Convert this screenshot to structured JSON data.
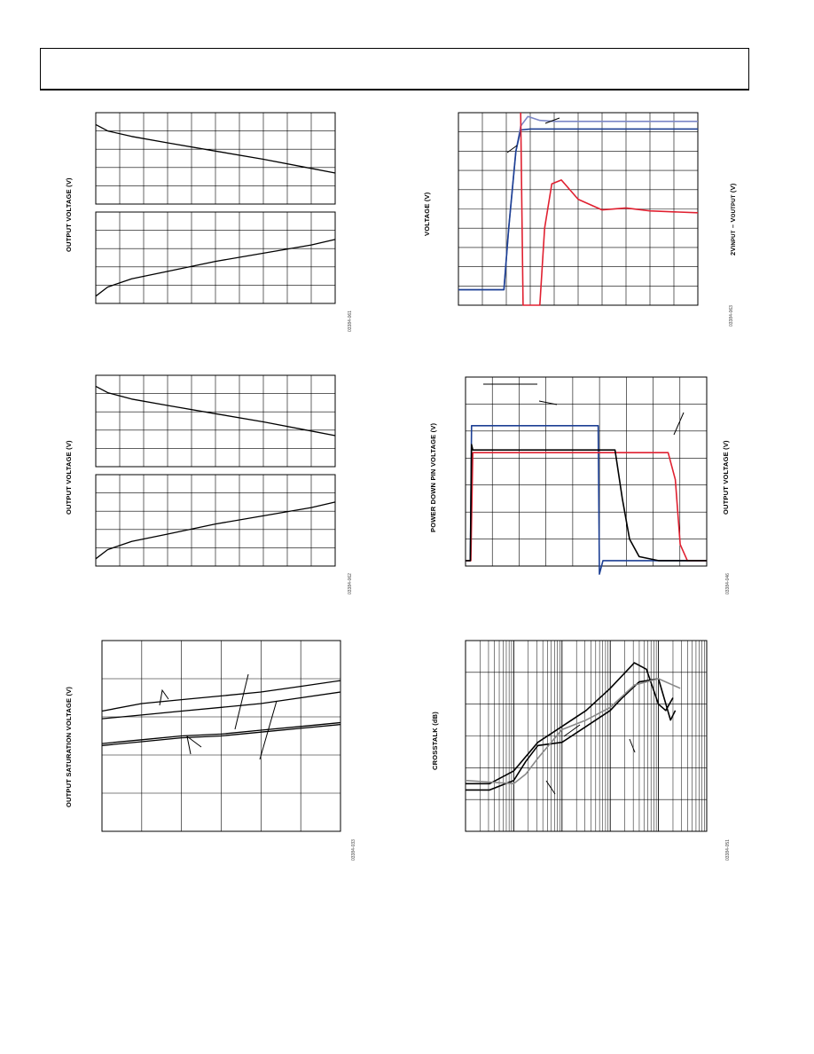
{
  "figures": [
    {
      "id": "fig1",
      "ylabel": "OUTPUT VOLTAGE (V)",
      "code": "03384-061"
    },
    {
      "id": "fig2",
      "ylabel": "VOLTAGE (V)",
      "ylabel_right_prefix": "2V",
      "ylabel_right_sub1": "INPUT",
      "ylabel_right_mid": " – V",
      "ylabel_right_sub2": "OUTPUT",
      "ylabel_right_suffix": " (V)",
      "code": "03384-063"
    },
    {
      "id": "fig3",
      "ylabel": "OUTPUT VOLTAGE (V)",
      "code": "03384-062"
    },
    {
      "id": "fig4",
      "ylabel": "POWER DOWN PIN VOLTAGE (V)",
      "ylabel_right": "OUTPUT VOLTAGE (V)",
      "code": "03384-046"
    },
    {
      "id": "fig5",
      "ylabel": "OUTPUT SATURATION VOLTAGE (V)",
      "code": "03384-033"
    },
    {
      "id": "fig6",
      "ylabel": "CROSSTALK (dB)",
      "code": "03384-051"
    }
  ],
  "chart_data": [
    {
      "type": "line",
      "id": "fig1-top",
      "xlim": [
        0,
        10
      ],
      "ylim": [
        0,
        5
      ],
      "series": [
        {
          "values": [
            [
              0,
              4.35
            ],
            [
              0.5,
              4.0
            ],
            [
              1.5,
              3.7
            ],
            [
              3,
              3.35
            ],
            [
              5,
              2.9
            ],
            [
              7,
              2.45
            ],
            [
              9,
              1.95
            ],
            [
              10,
              1.7
            ]
          ]
        }
      ]
    },
    {
      "type": "line",
      "id": "fig1-bottom",
      "xlim": [
        0,
        10
      ],
      "ylim": [
        0,
        5
      ],
      "series": [
        {
          "values": [
            [
              0,
              0.4
            ],
            [
              0.5,
              0.9
            ],
            [
              1.5,
              1.35
            ],
            [
              3,
              1.75
            ],
            [
              5,
              2.3
            ],
            [
              7,
              2.75
            ],
            [
              9,
              3.2
            ],
            [
              10,
              3.5
            ]
          ]
        }
      ]
    },
    {
      "type": "line",
      "id": "fig2",
      "xlim": [
        0,
        10
      ],
      "ylim": [
        0,
        10
      ],
      "series": [
        {
          "color": "#7b86c6",
          "values": [
            [
              0,
              0.8
            ],
            [
              1.9,
              0.8
            ],
            [
              2.1,
              4
            ],
            [
              2.4,
              8
            ],
            [
              2.6,
              9.3
            ],
            [
              2.9,
              9.8
            ],
            [
              3.4,
              9.6
            ],
            [
              4,
              9.55
            ],
            [
              10,
              9.55
            ]
          ]
        },
        {
          "color": "#1c3f94",
          "values": [
            [
              0,
              0.8
            ],
            [
              1.9,
              0.8
            ],
            [
              2.1,
              4
            ],
            [
              2.4,
              8
            ],
            [
              2.6,
              9.1
            ],
            [
              3,
              9.15
            ],
            [
              10,
              9.15
            ]
          ]
        },
        {
          "color": "#e02030",
          "values": [
            [
              2.6,
              10
            ],
            [
              2.7,
              0
            ],
            [
              3.4,
              0
            ],
            [
              3.6,
              4
            ],
            [
              3.9,
              6.3
            ],
            [
              4.3,
              6.5
            ],
            [
              5,
              5.5
            ],
            [
              6,
              4.95
            ],
            [
              7,
              5.05
            ],
            [
              8,
              4.9
            ],
            [
              9,
              4.85
            ],
            [
              10,
              4.8
            ]
          ]
        }
      ]
    },
    {
      "type": "line",
      "id": "fig3-top",
      "xlim": [
        0,
        10
      ],
      "ylim": [
        0,
        5
      ],
      "series": [
        {
          "values": [
            [
              0,
              4.4
            ],
            [
              0.5,
              4.05
            ],
            [
              1.5,
              3.7
            ],
            [
              3,
              3.35
            ],
            [
              5,
              2.9
            ],
            [
              7,
              2.45
            ],
            [
              9,
              1.95
            ],
            [
              10,
              1.7
            ]
          ]
        }
      ]
    },
    {
      "type": "line",
      "id": "fig3-bottom",
      "xlim": [
        0,
        10
      ],
      "ylim": [
        0,
        5
      ],
      "series": [
        {
          "values": [
            [
              0,
              0.4
            ],
            [
              0.5,
              0.9
            ],
            [
              1.5,
              1.35
            ],
            [
              3,
              1.75
            ],
            [
              5,
              2.3
            ],
            [
              7,
              2.75
            ],
            [
              9,
              3.2
            ],
            [
              10,
              3.5
            ]
          ]
        }
      ]
    },
    {
      "type": "line",
      "id": "fig4",
      "xlim": [
        0,
        10
      ],
      "ylim": [
        0,
        7
      ],
      "series": [
        {
          "color": "#1c3f94",
          "values": [
            [
              0,
              0.2
            ],
            [
              0.2,
              0.2
            ],
            [
              0.25,
              5.2
            ],
            [
              5.5,
              5.2
            ],
            [
              5.55,
              -0.3
            ],
            [
              5.7,
              0.2
            ],
            [
              10,
              0.2
            ]
          ]
        },
        {
          "color": "#e02030",
          "values": [
            [
              0,
              0.2
            ],
            [
              0.22,
              0.2
            ],
            [
              0.3,
              4.2
            ],
            [
              8.4,
              4.2
            ],
            [
              8.7,
              3.2
            ],
            [
              8.9,
              0.8
            ],
            [
              9.2,
              0.2
            ],
            [
              10,
              0.2
            ]
          ]
        },
        {
          "color": "#000000",
          "values": [
            [
              0,
              0.2
            ],
            [
              0.2,
              0.2
            ],
            [
              0.25,
              4.5
            ],
            [
              0.3,
              4.3
            ],
            [
              6.2,
              4.3
            ],
            [
              6.5,
              2.5
            ],
            [
              6.8,
              1
            ],
            [
              7.2,
              0.35
            ],
            [
              8,
              0.2
            ],
            [
              10,
              0.2
            ]
          ]
        }
      ]
    },
    {
      "type": "line",
      "id": "fig5",
      "xlim": [
        0,
        6
      ],
      "ylim": [
        0,
        5
      ],
      "series": [
        {
          "values": [
            [
              0,
              3.15
            ],
            [
              1,
              3.35
            ],
            [
              2,
              3.45
            ],
            [
              3,
              3.55
            ],
            [
              4,
              3.65
            ],
            [
              5,
              3.8
            ],
            [
              6,
              3.95
            ]
          ]
        },
        {
          "values": [
            [
              0,
              2.95
            ],
            [
              1,
              3.05
            ],
            [
              2,
              3.15
            ],
            [
              3,
              3.25
            ],
            [
              4,
              3.35
            ],
            [
              5,
              3.5
            ],
            [
              6,
              3.65
            ]
          ]
        },
        {
          "values": [
            [
              0,
              2.3
            ],
            [
              1,
              2.4
            ],
            [
              2,
              2.5
            ],
            [
              3,
              2.55
            ],
            [
              4,
              2.65
            ],
            [
              5,
              2.75
            ],
            [
              6,
              2.85
            ]
          ]
        },
        {
          "values": [
            [
              0,
              2.25
            ],
            [
              1,
              2.35
            ],
            [
              2,
              2.45
            ],
            [
              3,
              2.5
            ],
            [
              4,
              2.6
            ],
            [
              5,
              2.7
            ],
            [
              6,
              2.8
            ]
          ]
        }
      ]
    },
    {
      "type": "line",
      "id": "fig6",
      "xlim": [
        0,
        10
      ],
      "ylim": [
        0,
        6
      ],
      "series": [
        {
          "color": "#000000",
          "values": [
            [
              0,
              1.5
            ],
            [
              1,
              1.5
            ],
            [
              2,
              1.9
            ],
            [
              3,
              2.8
            ],
            [
              4,
              3.3
            ],
            [
              5,
              3.8
            ],
            [
              6,
              4.5
            ],
            [
              7,
              5.3
            ],
            [
              7.5,
              5.1
            ],
            [
              8,
              4.0
            ],
            [
              8.3,
              3.8
            ],
            [
              8.6,
              4.2
            ]
          ]
        },
        {
          "color": "#000000",
          "values": [
            [
              0,
              1.3
            ],
            [
              1,
              1.3
            ],
            [
              2,
              1.6
            ],
            [
              2.5,
              2.2
            ],
            [
              3,
              2.7
            ],
            [
              4,
              2.8
            ],
            [
              5,
              3.3
            ],
            [
              6,
              3.8
            ],
            [
              6.5,
              4.2
            ],
            [
              7.2,
              4.7
            ],
            [
              8,
              4.8
            ],
            [
              8.5,
              3.5
            ],
            [
              8.7,
              3.8
            ]
          ]
        },
        {
          "color": "#888888",
          "values": [
            [
              0,
              1.6
            ],
            [
              1,
              1.55
            ],
            [
              2,
              1.5
            ],
            [
              2.5,
              1.8
            ],
            [
              3,
              2.3
            ],
            [
              4,
              3.2
            ],
            [
              5,
              3.5
            ],
            [
              6,
              3.9
            ],
            [
              7,
              4.6
            ],
            [
              8,
              4.8
            ],
            [
              8.6,
              4.6
            ],
            [
              8.9,
              4.5
            ]
          ]
        }
      ]
    }
  ]
}
